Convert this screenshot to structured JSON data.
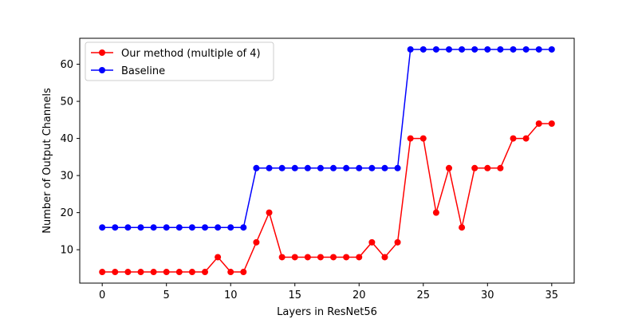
{
  "chart_data": {
    "type": "line",
    "title": "",
    "xlabel": "Layers in ResNet56",
    "ylabel": "Number of Output Channels",
    "xlim": [
      -1.75,
      36.75
    ],
    "ylim": [
      1.0,
      67.0
    ],
    "xticks": [
      0,
      5,
      10,
      15,
      20,
      25,
      30,
      35
    ],
    "yticks": [
      10,
      20,
      30,
      40,
      50,
      60
    ],
    "grid": false,
    "legend_position": "top-left",
    "x": [
      0,
      1,
      2,
      3,
      4,
      5,
      6,
      7,
      8,
      9,
      10,
      11,
      12,
      13,
      14,
      15,
      16,
      17,
      18,
      19,
      20,
      21,
      22,
      23,
      24,
      25,
      26,
      27,
      28,
      29,
      30,
      31,
      32,
      33,
      34,
      35
    ],
    "series": [
      {
        "name": "Our method (multiple of 4)",
        "color": "#ff0000",
        "marker": "circle",
        "values": [
          4,
          4,
          4,
          4,
          4,
          4,
          4,
          4,
          4,
          8,
          4,
          4,
          12,
          20,
          8,
          8,
          8,
          8,
          8,
          8,
          8,
          12,
          8,
          12,
          40,
          40,
          20,
          32,
          16,
          32,
          32,
          32,
          40,
          40,
          44,
          44
        ]
      },
      {
        "name": "Baseline",
        "color": "#0000ff",
        "marker": "circle",
        "values": [
          16,
          16,
          16,
          16,
          16,
          16,
          16,
          16,
          16,
          16,
          16,
          16,
          32,
          32,
          32,
          32,
          32,
          32,
          32,
          32,
          32,
          32,
          32,
          32,
          64,
          64,
          64,
          64,
          64,
          64,
          64,
          64,
          64,
          64,
          64,
          64
        ]
      }
    ]
  }
}
